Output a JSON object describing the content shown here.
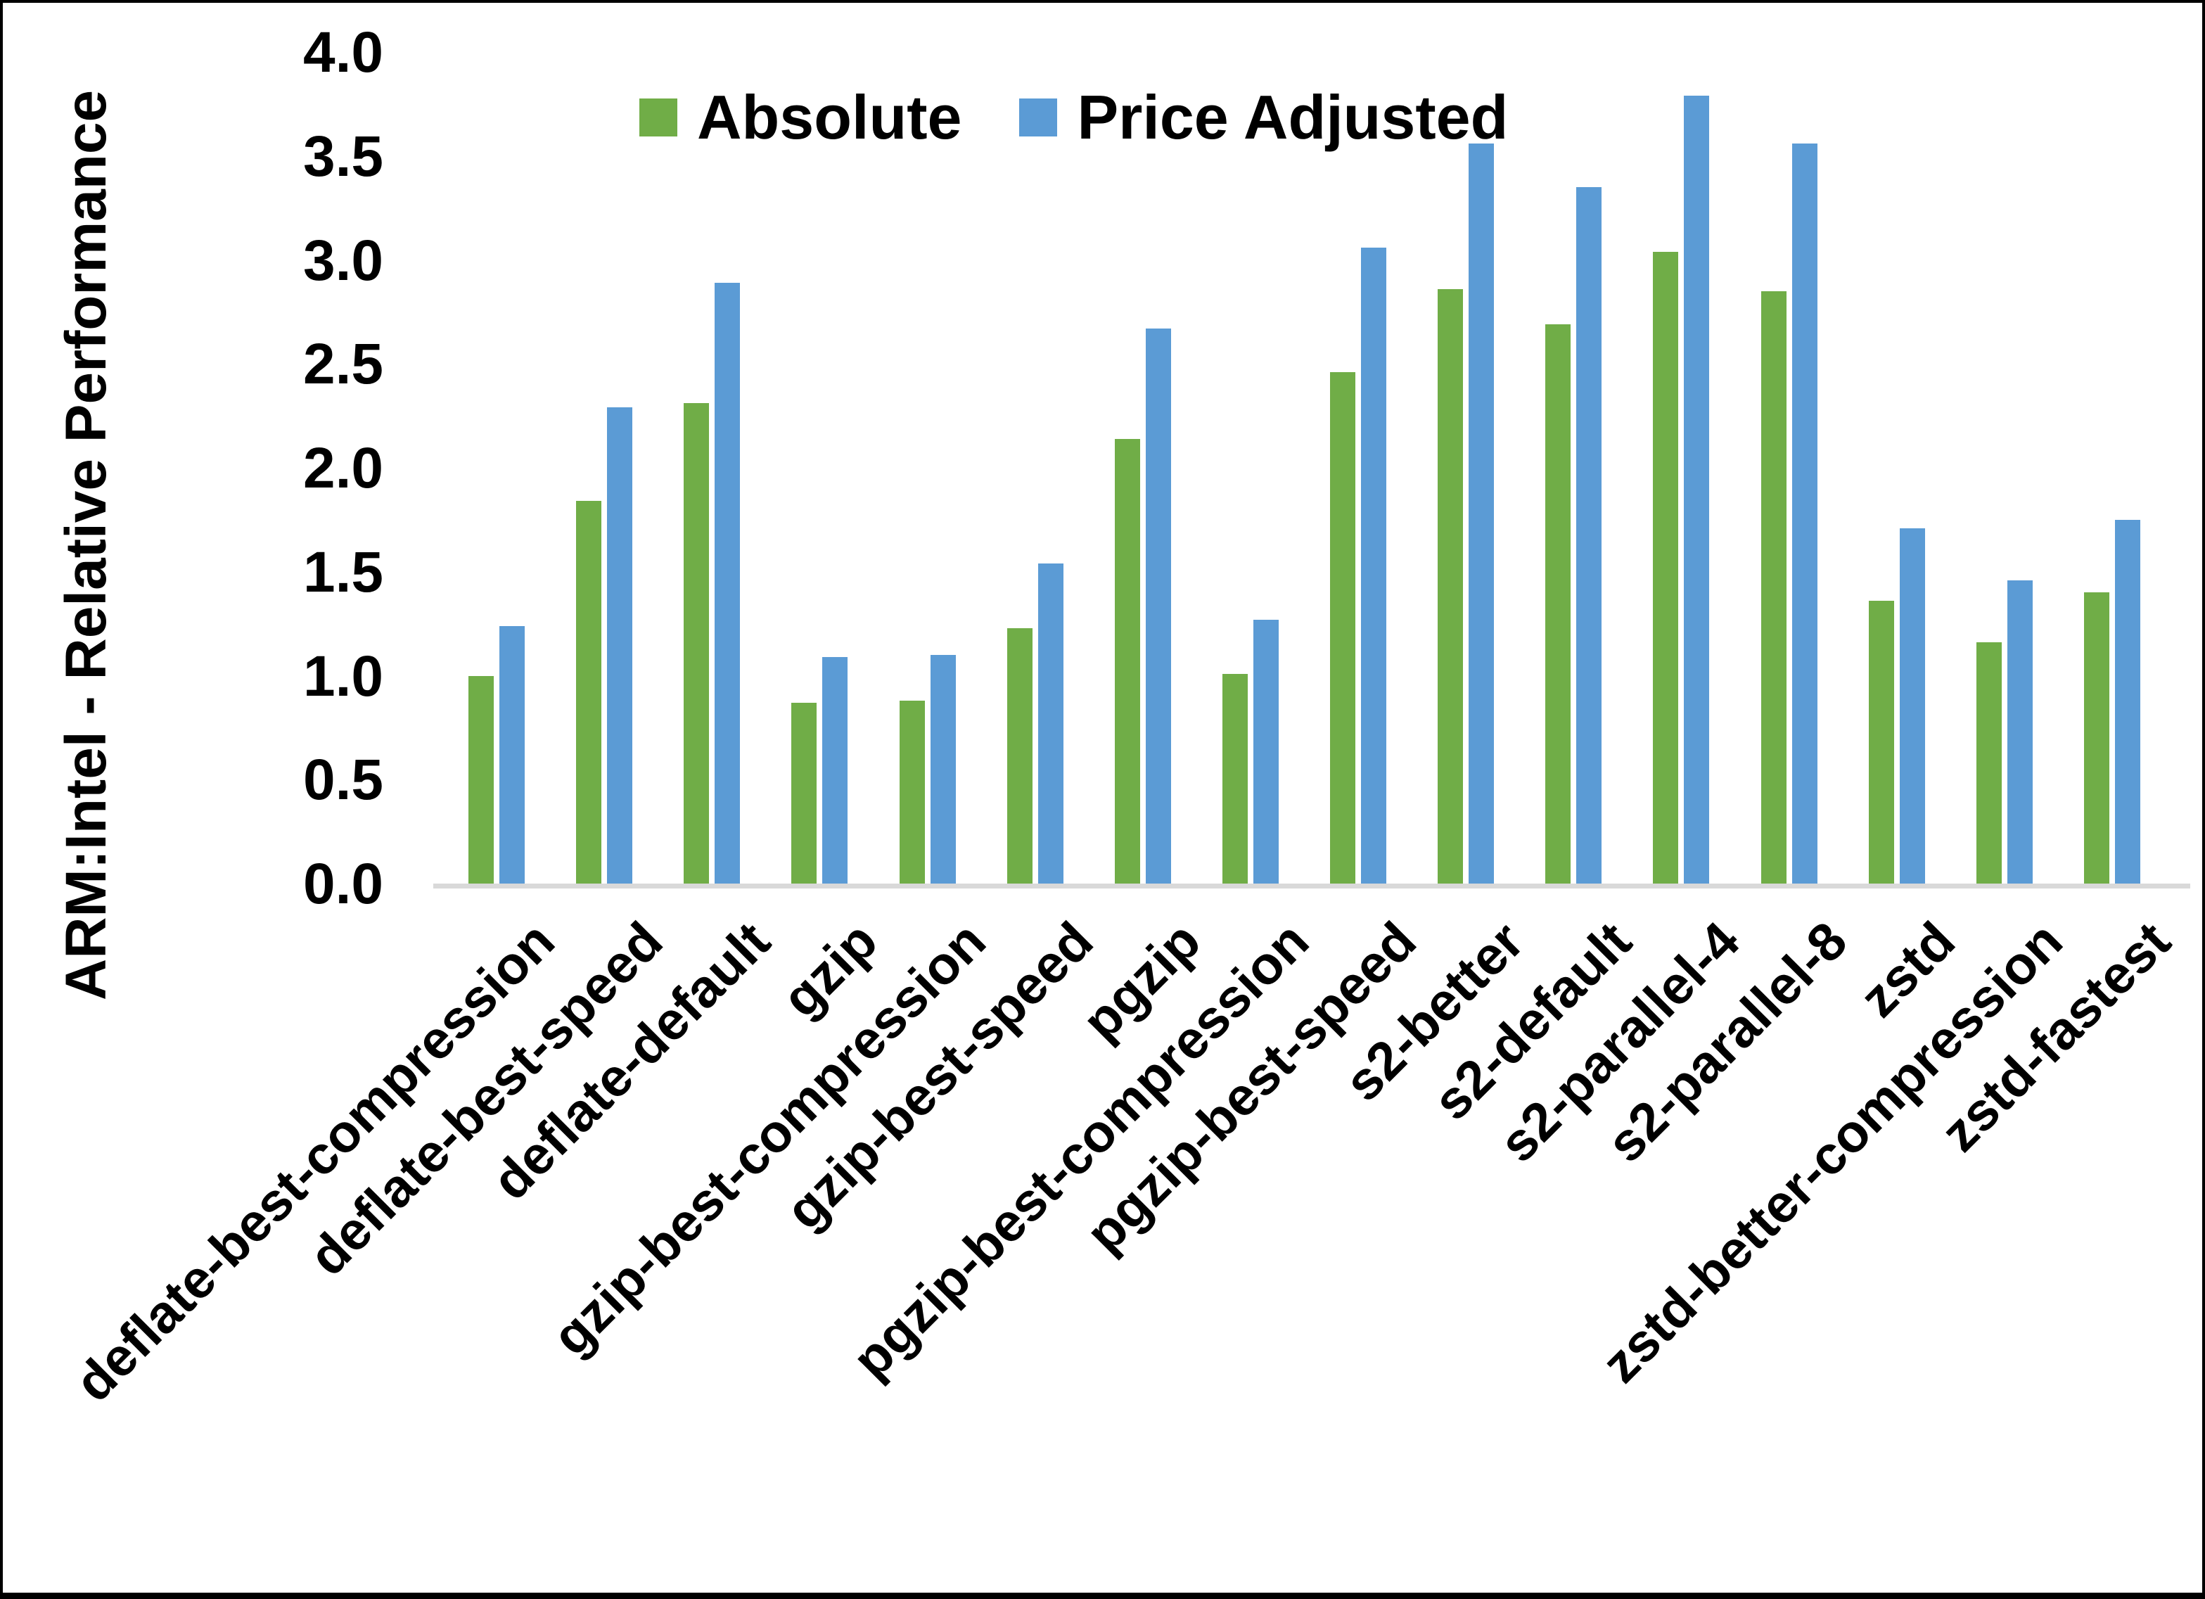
{
  "chart_data": {
    "type": "bar",
    "title": "",
    "ylabel": "ARM:Intel - Relative Performance",
    "xlabel": "",
    "ylim": [
      0.0,
      4.0
    ],
    "ytick_step": 0.5,
    "yticks": [
      "0.0",
      "0.5",
      "1.0",
      "1.5",
      "2.0",
      "2.5",
      "3.0",
      "3.5",
      "4.0"
    ],
    "grid": false,
    "legend_position": "top-center",
    "categories": [
      "deflate-best-compression",
      "deflate-best-speed",
      "deflate-default",
      "gzip",
      "gzip-best-compression",
      "gzip-best-speed",
      "pgzip",
      "pgzip-best-compression",
      "pgzip-best-speed",
      "s2-better",
      "s2-default",
      "s2-parallel-4",
      "s2-parallel-8",
      "zstd",
      "zstd-better-compression",
      "zstd-fastest"
    ],
    "series": [
      {
        "name": "Absolute",
        "color": "#70AD47",
        "values": [
          1.01,
          1.85,
          2.32,
          0.88,
          0.89,
          1.24,
          2.15,
          1.02,
          2.47,
          2.87,
          2.7,
          3.05,
          2.86,
          1.37,
          1.17,
          1.41
        ]
      },
      {
        "name": "Price Adjusted",
        "color": "#5B9BD5",
        "values": [
          1.25,
          2.3,
          2.9,
          1.1,
          1.11,
          1.55,
          2.68,
          1.28,
          3.07,
          3.57,
          3.36,
          3.8,
          3.57,
          1.72,
          1.47,
          1.76
        ]
      }
    ],
    "axis_line_color": "#D9D9D9",
    "text_color": "#000000"
  }
}
